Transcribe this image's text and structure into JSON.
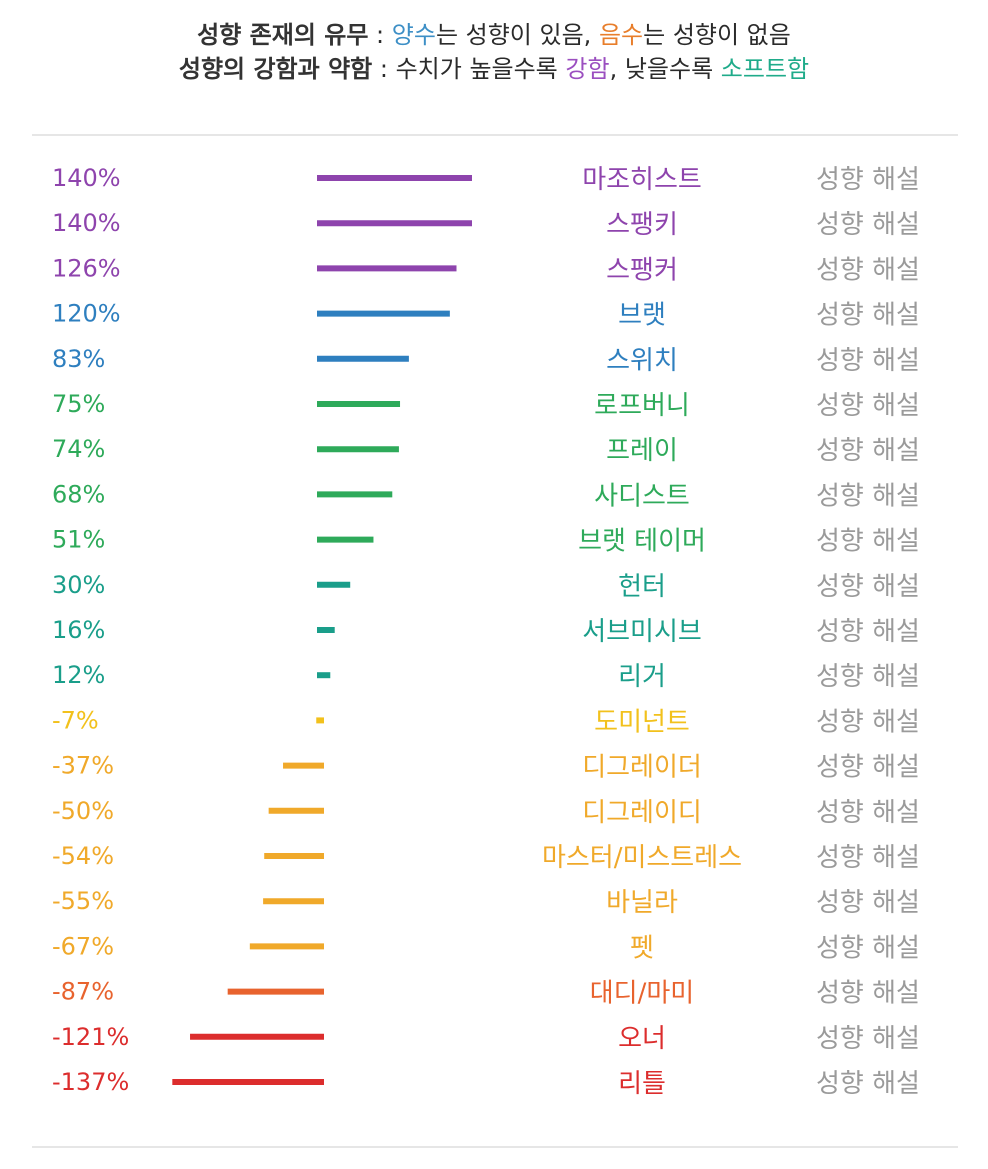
{
  "header": {
    "line1": {
      "key": "성향 존재의 유무",
      "sep": " : ",
      "positive": "양수",
      "t1": "는 성향이 있음, ",
      "negative": "음수",
      "t2": "는 성향이 없음"
    },
    "line2": {
      "key": "성향의 강함과 약함",
      "sep": " : ",
      "t1": "수치가 높을수록 ",
      "strong": "강함",
      "t2": ", 낮을수록 ",
      "soft": "소프트함"
    },
    "colors": {
      "positive": "#3d8fc6",
      "negative": "#e87e2b",
      "strong": "#9b4fc0",
      "soft": "#1fab8a"
    }
  },
  "chart_data": {
    "type": "bar",
    "orientation": "horizontal",
    "detail_label": "성향 해설",
    "categories": [
      "마조히스트",
      "스팽키",
      "스팽커",
      "브랫",
      "스위치",
      "로프버니",
      "프레이",
      "사디스트",
      "브랫 테이머",
      "헌터",
      "서브미시브",
      "리거",
      "도미넌트",
      "디그레이더",
      "디그레이디",
      "마스터/미스트레스",
      "바닐라",
      "펫",
      "대디/마미",
      "오너",
      "리틀"
    ],
    "values": [
      140,
      140,
      126,
      120,
      83,
      75,
      74,
      68,
      51,
      30,
      16,
      12,
      -7,
      -37,
      -50,
      -54,
      -55,
      -67,
      -87,
      -121,
      -137
    ],
    "value_labels": [
      "140%",
      "140%",
      "126%",
      "120%",
      "83%",
      "75%",
      "74%",
      "68%",
      "51%",
      "30%",
      "16%",
      "12%",
      "-7%",
      "-37%",
      "-50%",
      "-54%",
      "-55%",
      "-67%",
      "-87%",
      "-121%",
      "-137%"
    ],
    "colors": [
      "#8e44ad",
      "#8e44ad",
      "#8e44ad",
      "#2e7fbf",
      "#2e7fbf",
      "#2eaa5a",
      "#2eaa5a",
      "#2eaa5a",
      "#2eaa5a",
      "#1a9e8a",
      "#1a9e8a",
      "#1a9e8a",
      "#f2c11c",
      "#f0a92a",
      "#f0a92a",
      "#f0a92a",
      "#f0a92a",
      "#f0a92a",
      "#e8632e",
      "#dc2d2d",
      "#dc2d2d"
    ],
    "xlim": [
      -140,
      140
    ]
  }
}
